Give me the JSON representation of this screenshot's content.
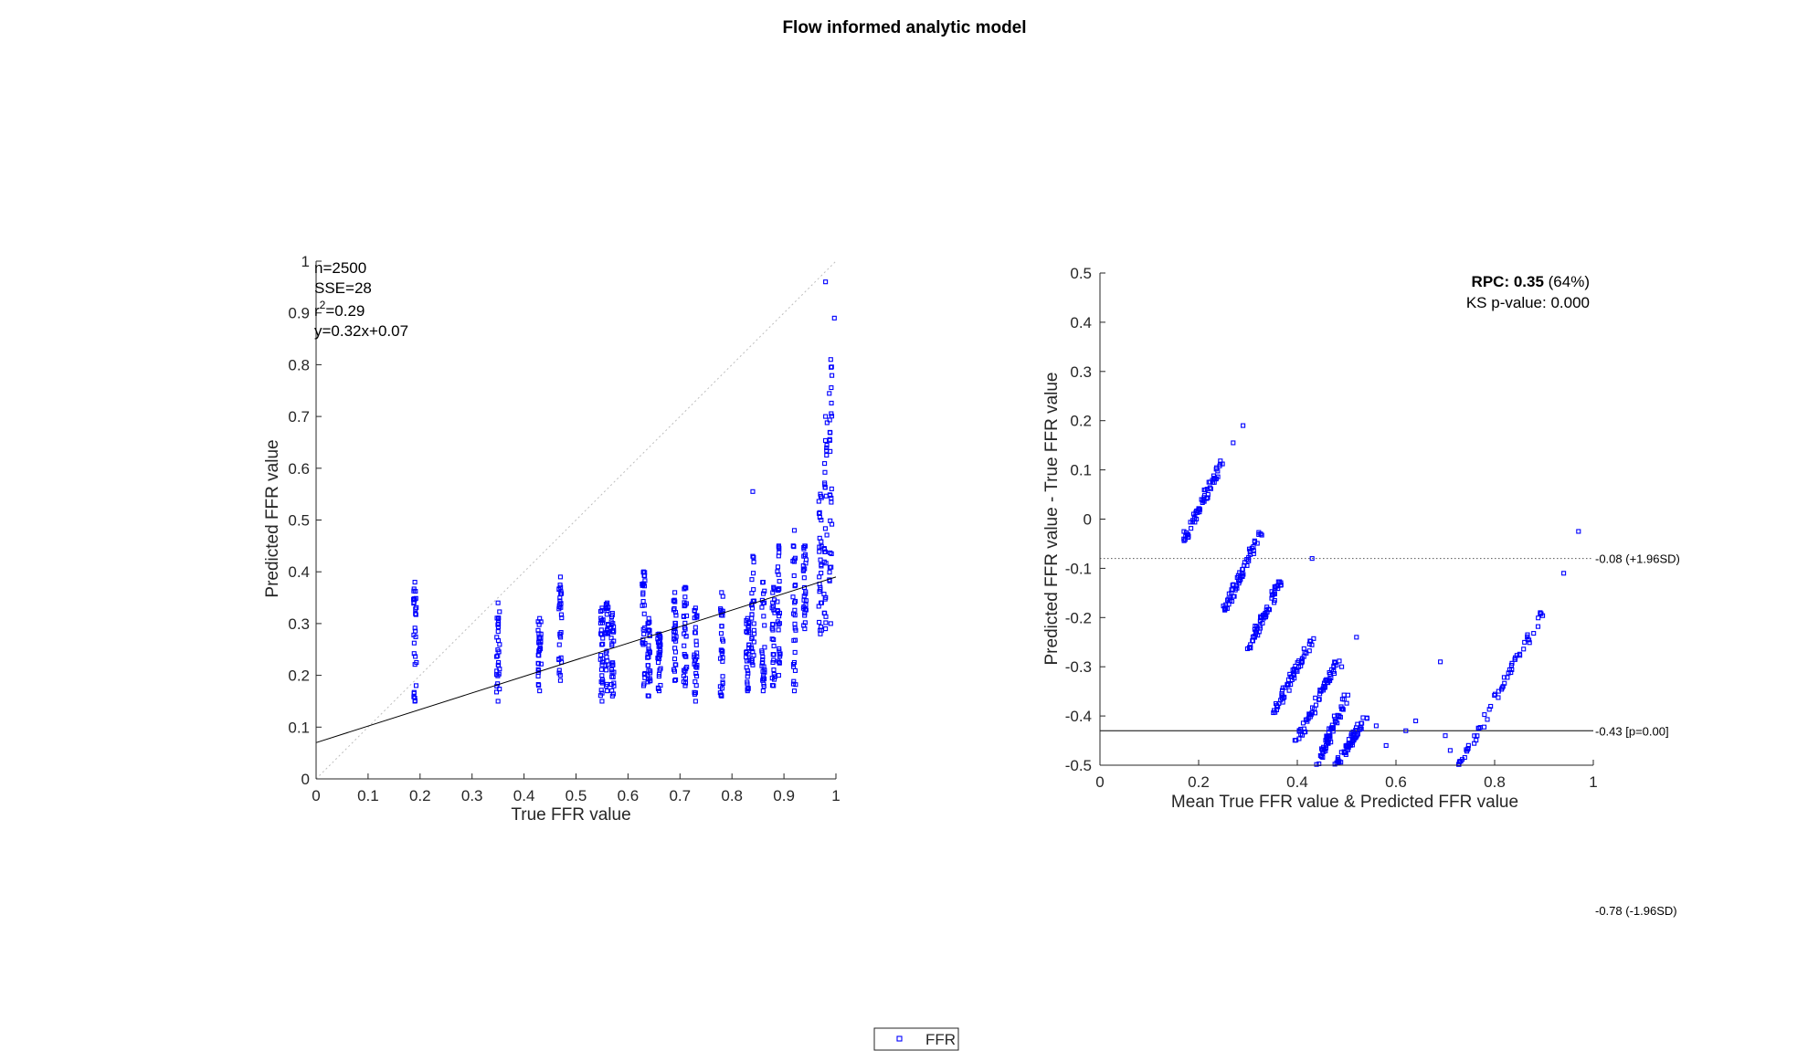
{
  "title": "Flow informed analytic  model",
  "legend": {
    "label": "FFR",
    "marker_color": "#0000ff"
  },
  "colors": {
    "marker": "#0000ff",
    "axis": "#262626",
    "fit_line": "#000000",
    "identity_line": "#bdbdbd"
  },
  "chart_data": [
    {
      "type": "scatter",
      "name": "correlation",
      "xlabel": "True FFR value",
      "ylabel": "Predicted FFR value",
      "xlim": [
        0,
        1
      ],
      "ylim": [
        0,
        1
      ],
      "xticks": [
        "0",
        "0.1",
        "0.2",
        "0.3",
        "0.4",
        "0.5",
        "0.6",
        "0.7",
        "0.8",
        "0.9",
        "1"
      ],
      "yticks": [
        "0",
        "0.1",
        "0.2",
        "0.3",
        "0.4",
        "0.5",
        "0.6",
        "0.7",
        "0.8",
        "0.9",
        "1"
      ],
      "grid": false,
      "annotations": {
        "n": "n=2500",
        "sse": "SSE=28",
        "r2_prefix": "r",
        "r2_exp": "2",
        "r2_value": "=0.29",
        "fit": "y=0.32x+0.07"
      },
      "fit_line": {
        "slope": 0.32,
        "intercept": 0.07
      },
      "identity_line": true,
      "clusters": [
        {
          "x": 0.19,
          "y_min": 0.15,
          "y_max": 0.38
        },
        {
          "x": 0.35,
          "y_min": 0.15,
          "y_max": 0.34
        },
        {
          "x": 0.43,
          "y_min": 0.17,
          "y_max": 0.31
        },
        {
          "x": 0.47,
          "y_min": 0.19,
          "y_max": 0.39
        },
        {
          "x": 0.55,
          "y_min": 0.15,
          "y_max": 0.33
        },
        {
          "x": 0.56,
          "y_min": 0.17,
          "y_max": 0.34
        },
        {
          "x": 0.57,
          "y_min": 0.16,
          "y_max": 0.32
        },
        {
          "x": 0.63,
          "y_min": 0.18,
          "y_max": 0.4
        },
        {
          "x": 0.64,
          "y_min": 0.16,
          "y_max": 0.31
        },
        {
          "x": 0.66,
          "y_min": 0.17,
          "y_max": 0.28
        },
        {
          "x": 0.69,
          "y_min": 0.19,
          "y_max": 0.36
        },
        {
          "x": 0.71,
          "y_min": 0.18,
          "y_max": 0.37
        },
        {
          "x": 0.73,
          "y_min": 0.15,
          "y_max": 0.33
        },
        {
          "x": 0.78,
          "y_min": 0.16,
          "y_max": 0.36
        },
        {
          "x": 0.83,
          "y_min": 0.17,
          "y_max": 0.31
        },
        {
          "x": 0.84,
          "y_min": 0.22,
          "y_max": 0.43
        },
        {
          "x": 0.86,
          "y_min": 0.17,
          "y_max": 0.38
        },
        {
          "x": 0.88,
          "y_min": 0.18,
          "y_max": 0.37
        },
        {
          "x": 0.89,
          "y_min": 0.2,
          "y_max": 0.45
        },
        {
          "x": 0.92,
          "y_min": 0.17,
          "y_max": 0.48
        },
        {
          "x": 0.94,
          "y_min": 0.29,
          "y_max": 0.45
        },
        {
          "x": 0.97,
          "y_min": 0.28,
          "y_max": 0.55
        },
        {
          "x": 0.98,
          "y_min": 0.29,
          "y_max": 0.7
        },
        {
          "x": 0.99,
          "y_min": 0.3,
          "y_max": 0.81
        }
      ],
      "outliers": [
        {
          "x": 0.98,
          "y": 0.96
        },
        {
          "x": 0.997,
          "y": 0.89
        },
        {
          "x": 0.84,
          "y": 0.555
        }
      ]
    },
    {
      "type": "scatter",
      "name": "bland-altman",
      "xlabel": "Mean True FFR value & Predicted FFR value",
      "ylabel": "Predicted FFR value - True FFR value",
      "xlim": [
        0,
        1
      ],
      "ylim": [
        -0.5,
        0.5
      ],
      "xticks": [
        "0",
        "0.2",
        "0.4",
        "0.6",
        "0.8",
        "1"
      ],
      "yticks": [
        "-0.5",
        "-0.4",
        "-0.3",
        "-0.2",
        "-0.1",
        "0",
        "0.1",
        "0.2",
        "0.3",
        "0.4",
        "0.5"
      ],
      "grid": false,
      "rpc": {
        "label": "RPC: 0.35",
        "percent": " (64%)"
      },
      "ks": "KS p-value: 0.000",
      "reference_lines": [
        {
          "y": -0.08,
          "style": "dotted",
          "label": "-0.08 (+1.96SD)"
        },
        {
          "y": -0.43,
          "style": "solid",
          "label": "-0.43 [p=0.00]"
        },
        {
          "y": -0.78,
          "style": "dotted",
          "label": "-0.78 (-1.96SD)"
        }
      ],
      "streaks": [
        {
          "x0": 0.17,
          "y0": -0.04,
          "x1": 0.25,
          "y1": 0.12
        },
        {
          "x0": 0.25,
          "y0": -0.19,
          "x1": 0.33,
          "y1": -0.02
        },
        {
          "x0": 0.3,
          "y0": -0.26,
          "x1": 0.37,
          "y1": -0.12
        },
        {
          "x0": 0.35,
          "y0": -0.4,
          "x1": 0.43,
          "y1": -0.24
        },
        {
          "x0": 0.4,
          "y0": -0.45,
          "x1": 0.48,
          "y1": -0.29
        },
        {
          "x0": 0.44,
          "y0": -0.5,
          "x1": 0.5,
          "y1": -0.36
        },
        {
          "x0": 0.48,
          "y0": -0.5,
          "x1": 0.54,
          "y1": -0.4
        },
        {
          "x0": 0.73,
          "y0": -0.5,
          "x1": 0.9,
          "y1": -0.18
        }
      ],
      "extra_points": [
        {
          "x": 0.27,
          "y": 0.155
        },
        {
          "x": 0.29,
          "y": 0.19
        },
        {
          "x": 0.97,
          "y": -0.025
        },
        {
          "x": 0.94,
          "y": -0.11
        },
        {
          "x": 0.43,
          "y": -0.08
        },
        {
          "x": 0.69,
          "y": -0.29
        },
        {
          "x": 0.62,
          "y": -0.43
        },
        {
          "x": 0.64,
          "y": -0.41
        },
        {
          "x": 0.58,
          "y": -0.46
        },
        {
          "x": 0.71,
          "y": -0.47
        },
        {
          "x": 0.7,
          "y": -0.44
        },
        {
          "x": 0.56,
          "y": -0.42
        },
        {
          "x": 0.49,
          "y": -0.3
        },
        {
          "x": 0.52,
          "y": -0.24
        }
      ]
    }
  ]
}
